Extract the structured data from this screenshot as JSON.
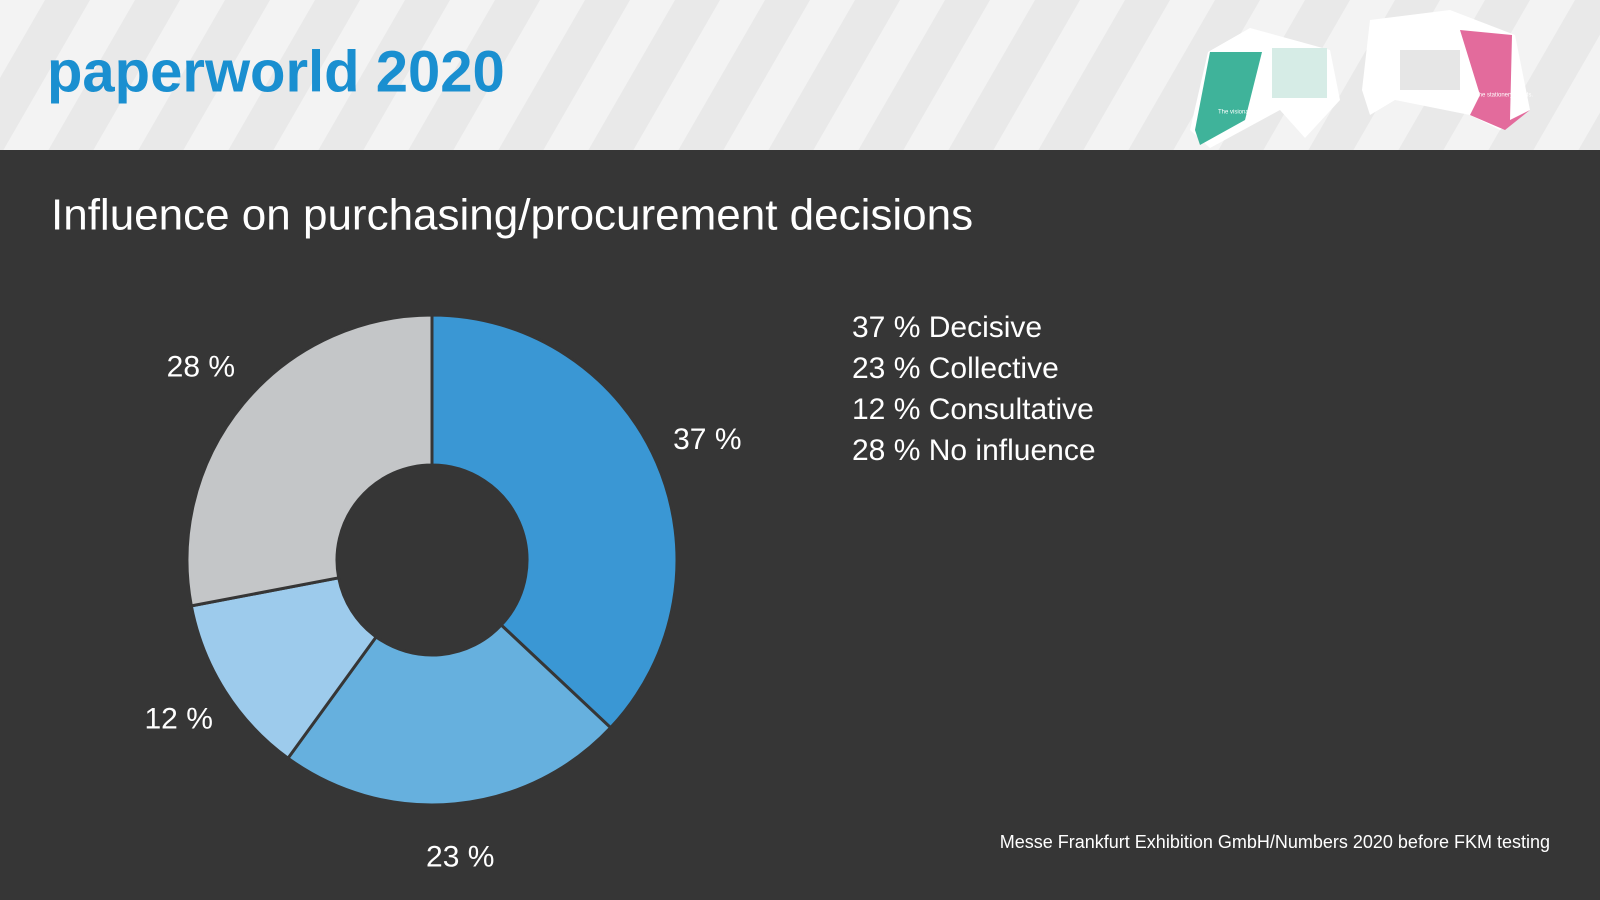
{
  "header": {
    "title": "paperworld 2020",
    "badges": [
      "The visionary office.",
      "The stationery trends."
    ]
  },
  "chart_data": {
    "type": "donut",
    "title": "Influence on purchasing/procurement decisions",
    "categories": [
      "Decisive",
      "Collective",
      "Consultative",
      "No influence"
    ],
    "values": [
      37,
      23,
      12,
      28
    ],
    "value_labels": [
      "37 %",
      "23 %",
      "12 %",
      "28 %"
    ],
    "colors": [
      "#3a97d4",
      "#66b0de",
      "#9dcbec",
      "#c4c6c8"
    ]
  },
  "source": "Messe Frankfurt Exhibition GmbH/Numbers 2020 before FKM testing"
}
